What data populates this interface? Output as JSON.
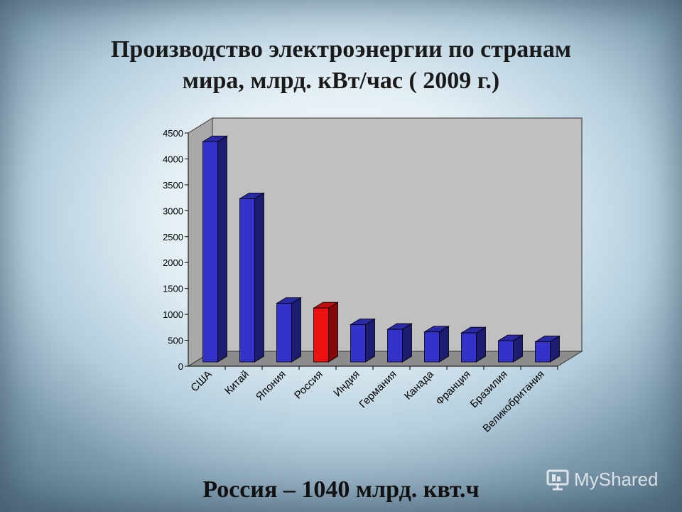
{
  "title": {
    "line1": "Производство электроэнергии по странам",
    "line2": "мира, млрд. кВт/час ( 2009 г.)"
  },
  "caption": "Россия – 1040 млрд. квт.ч",
  "watermark": "MyShared",
  "colors": {
    "bar": "#3333cc",
    "highlight": "#ee1111",
    "wall": "#c0c0c0"
  },
  "chart_data": {
    "type": "bar",
    "categories": [
      "США",
      "Китай",
      "Япония",
      "Россия",
      "Индия",
      "Германия",
      "Канада",
      "Франция",
      "Бразилия",
      "Великобритания"
    ],
    "values": [
      4250,
      3150,
      1130,
      1040,
      720,
      630,
      580,
      560,
      410,
      390
    ],
    "highlight_index": 3,
    "ylim": [
      0,
      4500
    ],
    "yticks": [
      "0",
      "500",
      "1000",
      "1500",
      "2000",
      "2500",
      "3000",
      "3500",
      "4000",
      "4500"
    ],
    "grid": false,
    "legend": "none"
  }
}
